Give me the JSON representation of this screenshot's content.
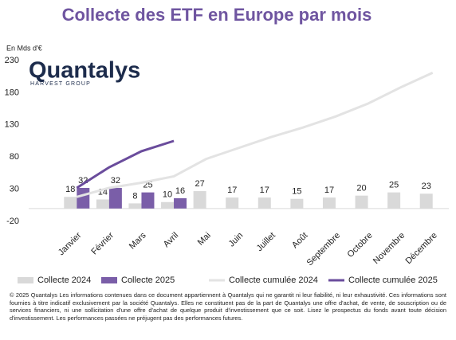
{
  "logo": {
    "name": "Quantalys",
    "tagline": "HARVEST GROUP"
  },
  "footnote": "© 2025 Quantalys Les informations contenues dans ce document appartiennent à Quantalys qui ne garantit ni leur fiabilité, ni leur exhaustivité. Ces informations sont fournies à titre indicatif exclusivement par la société Quantalys. Elles ne constituent pas de la part de Quantalys une offre d'achat, de vente, de souscription ou de services financiers, ni une sollicitation d'une offre d'achat de quelque produit d'investissement que ce soit. Lisez le prospectus du fonds avant toute décision d'investissement. Les performances passées ne préjugent pas des performances futures.",
  "chart_data": {
    "type": "bar",
    "title": "Collecte des ETF en Europe par mois",
    "y_label": "En Mds d'€",
    "categories": [
      "Janvier",
      "Février",
      "Mars",
      "Avril",
      "Mai",
      "Juin",
      "Juillet",
      "Août",
      "Septembre",
      "Octobre",
      "Novembre",
      "Décembre"
    ],
    "series": [
      {
        "name": "Collecte 2024",
        "kind": "bar",
        "color": "#d9d9d9",
        "values": [
          18,
          14,
          8,
          10,
          27,
          17,
          17,
          15,
          17,
          20,
          25,
          23
        ]
      },
      {
        "name": "Collecte 2025",
        "kind": "bar",
        "color": "#7a5ea8",
        "values": [
          32,
          32,
          25,
          16,
          null,
          null,
          null,
          null,
          null,
          null,
          null,
          null
        ]
      },
      {
        "name": "Collecte cumulée 2024",
        "kind": "line",
        "color": "#e3e3e3",
        "values": [
          18,
          32,
          40,
          50,
          77,
          94,
          111,
          126,
          143,
          163,
          188,
          211
        ]
      },
      {
        "name": "Collecte cumulée 2025",
        "kind": "line",
        "color": "#6a4c9c",
        "values": [
          32,
          64,
          89,
          105,
          null,
          null,
          null,
          null,
          null,
          null,
          null,
          null
        ]
      }
    ],
    "ylim": [
      -20,
      230
    ],
    "yticks": [
      -20,
      30,
      80,
      130,
      180,
      230
    ],
    "grid": false,
    "legend": "bottom"
  }
}
